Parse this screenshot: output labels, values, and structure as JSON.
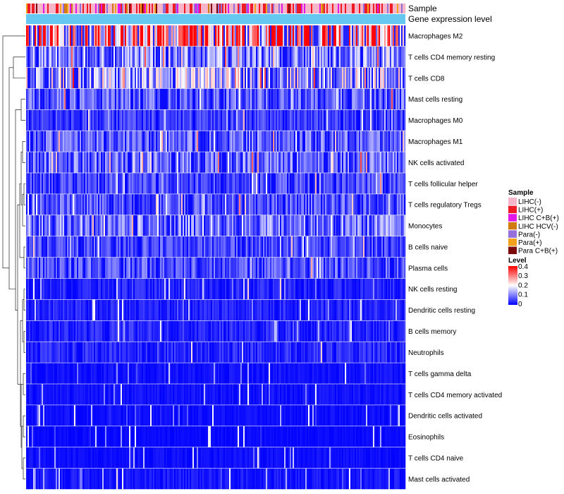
{
  "chart_data": {
    "type": "heatmap",
    "title": "",
    "annotations": [
      "Sample",
      "Gene expression level"
    ],
    "rows": [
      {
        "name": "Macrophages M2",
        "mean": 0.27
      },
      {
        "name": "T cells CD4 memory resting",
        "mean": 0.11
      },
      {
        "name": "T cells CD8",
        "mean": 0.15
      },
      {
        "name": "Mast cells resting",
        "mean": 0.08
      },
      {
        "name": "Macrophages M0",
        "mean": 0.05
      },
      {
        "name": "Macrophages M1",
        "mean": 0.08
      },
      {
        "name": "NK cells activated",
        "mean": 0.09
      },
      {
        "name": "T cells follicular helper",
        "mean": 0.06
      },
      {
        "name": "T cells regulatory  Tregs",
        "mean": 0.07
      },
      {
        "name": "Monocytes",
        "mean": 0.1
      },
      {
        "name": "B cells naive",
        "mean": 0.06
      },
      {
        "name": "Plasma cells",
        "mean": 0.07
      },
      {
        "name": "NK cells resting",
        "mean": 0.03
      },
      {
        "name": "Dendritic cells resting",
        "mean": 0.03
      },
      {
        "name": "B cells memory",
        "mean": 0.035
      },
      {
        "name": "Neutrophils",
        "mean": 0.035
      },
      {
        "name": "T cells gamma delta",
        "mean": 0.015
      },
      {
        "name": "T cells CD4 memory activated",
        "mean": 0.015
      },
      {
        "name": "Dendritic cells activated",
        "mean": 0.012
      },
      {
        "name": "Eosinophils",
        "mean": 0.008
      },
      {
        "name": "T cells CD4 naive",
        "mean": 0.012
      },
      {
        "name": "Mast cells activated",
        "mean": 0.02
      }
    ],
    "legend_sample": {
      "title": "Sample",
      "items": [
        {
          "label": "LIHC(-)",
          "color": "#f4b6c8"
        },
        {
          "label": "LIHC(+)",
          "color": "#ee1c24"
        },
        {
          "label": "LIHC C+B(+)",
          "color": "#e018e8"
        },
        {
          "label": "LIHC HCV(-)",
          "color": "#d07a10"
        },
        {
          "label": "Para(-)",
          "color": "#9370db"
        },
        {
          "label": "Para(+)",
          "color": "#f3a21a"
        },
        {
          "label": "Para C+B(+)",
          "color": "#7b0a0a"
        }
      ]
    },
    "legend_level": {
      "title": "Level",
      "ticks": [
        "0.4",
        "0.3",
        "0.2",
        "0.1",
        "0"
      ],
      "range": [
        0,
        0.4
      ],
      "colors": [
        "#0000ff",
        "#ffffff",
        "#ff0000"
      ]
    },
    "expression_bar_color": "#64c8f0"
  }
}
